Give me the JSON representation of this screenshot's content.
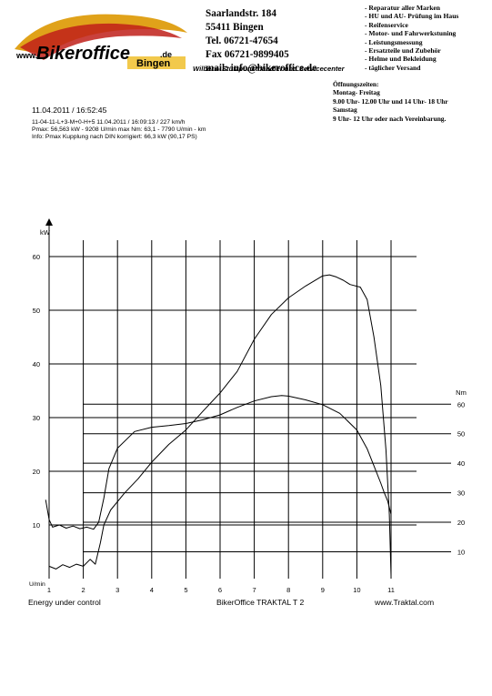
{
  "header": {
    "logo": {
      "domain": "www.",
      "brand": "Bikeroffice",
      "tld": ".de",
      "city": "Bingen"
    },
    "address_lines": [
      "Saarlandstr. 184",
      "55411 Bingen",
      "Tel. 06721-47654",
      "Fax 06721-9899405",
      "mail: info@bikeroffice.de"
    ],
    "tagline": "Wilbers- Stützpunkthändler und Servicecenter",
    "services": [
      "- Reparatur aller Marken",
      "- HU und AU- Prüfung im Haus",
      "- Reifenservice",
      "- Motor- und Fahrwerkstuning",
      "- Leistungsmessung",
      "- Ersatzteile und Zubehör",
      "- Helme und Bekleidung",
      "- täglicher Versand"
    ],
    "opening_hours": [
      "Öffnungszeiten:",
      "Montag- Freitag",
      "9.00 Uhr- 12.00 Uhr und 14 Uhr- 18 Uhr",
      "Samstag",
      "9 Uhr- 12 Uhr  oder nach Vereinbarung."
    ],
    "colors": {
      "brand_red": "#c0201a",
      "brand_gold": "#e0a21a",
      "brand_yellow": "#f2c94c"
    }
  },
  "run": {
    "datetime": "11.04.2011  /  16:52:45",
    "info_lines": [
      "11-04-11-L+3-M+0-H+5    11.04.2011   /  16:09:13  / 227 km/h",
      "Pmax: 56,563 kW - 9208 U/min    max Nm: 63,1 - 7790 U/min    - km",
      "Info: Pmax Kupplung nach DIN korrigiert: 66,3 kW (90,17 PS)"
    ]
  },
  "chart_data": {
    "type": "line",
    "xlabel": "U/min",
    "ylabel": "kW",
    "y2label": "Nm",
    "xlim": [
      0.5,
      11.5
    ],
    "ylim": [
      0,
      65
    ],
    "x_ticks": [
      "1",
      "2",
      "3",
      "4",
      "5",
      "6",
      "7",
      "8",
      "9",
      "10",
      "11"
    ],
    "y_ticks": [
      "10",
      "20",
      "30",
      "40",
      "50",
      "60"
    ],
    "y2_ticks": [
      "10",
      "20",
      "30",
      "40",
      "50",
      "60"
    ],
    "y2_tick_positions_kw": [
      5,
      10.5,
      16,
      21.5,
      27,
      32.5
    ],
    "grid": true,
    "series": [
      {
        "name": "",
        "unit": "kW",
        "points": [
          [
            1.0,
            2.3
          ],
          [
            1.2,
            1.8
          ],
          [
            1.4,
            2.6
          ],
          [
            1.6,
            2.1
          ],
          [
            1.8,
            2.7
          ],
          [
            2.0,
            2.3
          ],
          [
            2.2,
            3.6
          ],
          [
            2.35,
            2.7
          ],
          [
            2.5,
            6.7
          ],
          [
            2.6,
            10.0
          ],
          [
            2.8,
            12.8
          ],
          [
            3.2,
            15.9
          ],
          [
            3.6,
            18.6
          ],
          [
            4.0,
            21.7
          ],
          [
            4.5,
            25.0
          ],
          [
            5.0,
            27.7
          ],
          [
            5.5,
            31.2
          ],
          [
            6.0,
            34.6
          ],
          [
            6.5,
            38.6
          ],
          [
            7.0,
            44.6
          ],
          [
            7.5,
            49.2
          ],
          [
            8.0,
            52.3
          ],
          [
            8.5,
            54.5
          ],
          [
            9.0,
            56.4
          ],
          [
            9.2,
            56.6
          ],
          [
            9.4,
            56.2
          ],
          [
            9.6,
            55.6
          ],
          [
            9.8,
            54.8
          ],
          [
            10.1,
            54.3
          ],
          [
            10.3,
            52.0
          ],
          [
            10.5,
            45.0
          ],
          [
            10.7,
            36.0
          ],
          [
            10.85,
            24.0
          ],
          [
            10.95,
            12.0
          ],
          [
            11.0,
            0.5
          ]
        ]
      },
      {
        "name": "",
        "unit": "Nm",
        "points": [
          [
            0.9,
            14.7
          ],
          [
            1.0,
            11.0
          ],
          [
            1.1,
            9.6
          ],
          [
            1.3,
            10.0
          ],
          [
            1.5,
            9.4
          ],
          [
            1.7,
            9.8
          ],
          [
            1.9,
            9.3
          ],
          [
            2.1,
            9.6
          ],
          [
            2.3,
            9.2
          ],
          [
            2.45,
            10.5
          ],
          [
            2.6,
            15.0
          ],
          [
            2.75,
            20.5
          ],
          [
            3.0,
            24.3
          ],
          [
            3.5,
            27.4
          ],
          [
            4.0,
            28.2
          ],
          [
            4.5,
            28.5
          ],
          [
            5.0,
            28.9
          ],
          [
            5.5,
            29.6
          ],
          [
            6.0,
            30.5
          ],
          [
            6.5,
            31.9
          ],
          [
            7.0,
            33.1
          ],
          [
            7.5,
            33.9
          ],
          [
            7.8,
            34.1
          ],
          [
            8.0,
            34.0
          ],
          [
            8.5,
            33.3
          ],
          [
            9.0,
            32.4
          ],
          [
            9.5,
            30.8
          ],
          [
            10.0,
            27.7
          ],
          [
            10.3,
            24.2
          ],
          [
            10.5,
            21.0
          ],
          [
            10.7,
            17.8
          ],
          [
            10.8,
            16.0
          ],
          [
            10.9,
            14.5
          ],
          [
            11.0,
            12.0
          ]
        ]
      }
    ]
  },
  "footer": {
    "left": "Energy  under control",
    "center": "BikerOffice TRAKTAL  T 2",
    "right": "www.Traktal.com"
  }
}
